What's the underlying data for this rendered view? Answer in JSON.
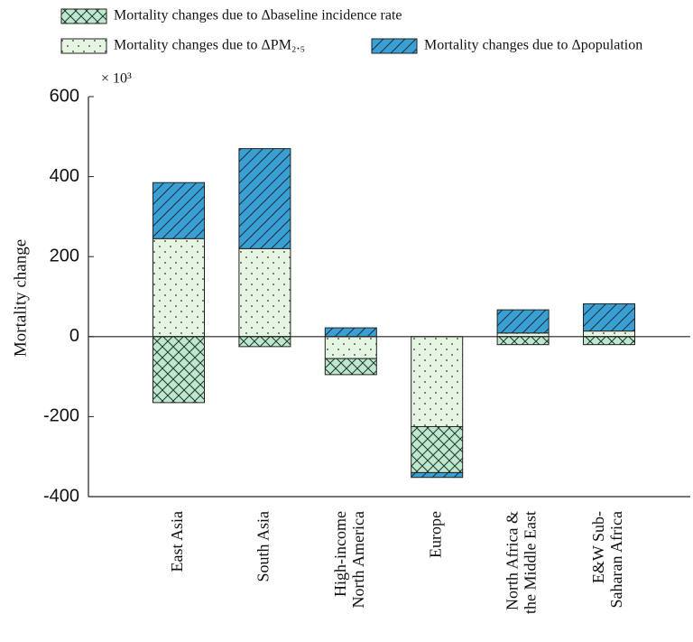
{
  "chart_data": {
    "type": "bar",
    "stacked": true,
    "ylabel": "Mortality change",
    "multiplier": "× 10³",
    "categories": [
      [
        "East Asia"
      ],
      [
        "South Asia"
      ],
      [
        "High-income",
        "North America"
      ],
      [
        "Europe"
      ],
      [
        "North Africa &",
        "the Middle East"
      ],
      [
        "E&W Sub-",
        "Saharan Africa"
      ]
    ],
    "series": [
      {
        "name": "Mortality changes due to  Δbaseline incidence rate",
        "color": "#bfe6cf",
        "pattern": "crosshatch",
        "values": [
          -165,
          -25,
          -40,
          -115,
          -20,
          -20
        ]
      },
      {
        "name": "Mortality changes due to ΔPM₂.₅",
        "color": "#e6f5e2",
        "pattern": "dots",
        "values": [
          245,
          220,
          -55,
          -225,
          9,
          14
        ]
      },
      {
        "name": "Mortality changes due to Δpopulation",
        "color": "#3a9fd2",
        "pattern": "hatch",
        "values": [
          140,
          250,
          22,
          -12,
          58,
          68
        ]
      }
    ],
    "ylim": [
      -400,
      600
    ],
    "yticks": [
      -400,
      -200,
      0,
      200,
      400,
      600
    ],
    "grid": false
  }
}
